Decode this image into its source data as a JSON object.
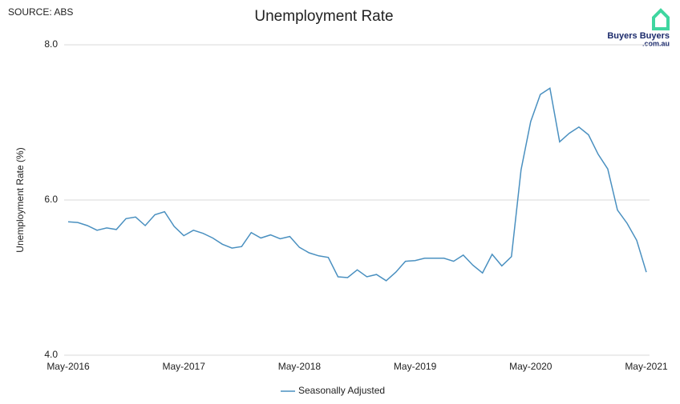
{
  "chart_data": {
    "type": "line",
    "source": "SOURCE: ABS",
    "title": "Unemployment Rate",
    "logo": {
      "name": "Buyers Buyers",
      "domain": ".com.au"
    },
    "y_label": "Unemployment Rate (%)",
    "categories": [
      "May-2016",
      null,
      null,
      null,
      null,
      null,
      null,
      null,
      null,
      null,
      null,
      null,
      "May-2017",
      null,
      null,
      null,
      null,
      null,
      null,
      null,
      null,
      null,
      null,
      null,
      "May-2018",
      null,
      null,
      null,
      null,
      null,
      null,
      null,
      null,
      null,
      null,
      null,
      "May-2019",
      null,
      null,
      null,
      null,
      null,
      null,
      null,
      null,
      null,
      null,
      null,
      "May-2020",
      null,
      null,
      null,
      null,
      null,
      null,
      null,
      null,
      null,
      null,
      null,
      "May-2021"
    ],
    "series": [
      {
        "name": "Seasonally Adjusted",
        "color": "#4a90c0",
        "values": [
          5.72,
          5.71,
          5.67,
          5.61,
          5.64,
          5.62,
          5.76,
          5.78,
          5.67,
          5.81,
          5.85,
          5.66,
          5.54,
          5.61,
          5.57,
          5.51,
          5.43,
          5.38,
          5.4,
          5.58,
          5.51,
          5.55,
          5.5,
          5.53,
          5.39,
          5.32,
          5.28,
          5.26,
          5.01,
          5.0,
          5.1,
          5.01,
          5.04,
          4.96,
          5.07,
          5.21,
          5.22,
          5.25,
          5.25,
          5.25,
          5.21,
          5.29,
          5.16,
          5.06,
          5.3,
          5.15,
          5.27,
          6.39,
          7.01,
          7.36,
          7.44,
          6.75,
          6.86,
          6.94,
          6.84,
          6.59,
          6.4,
          5.87,
          5.7,
          5.48,
          5.07
        ]
      }
    ],
    "ylim": [
      4,
      8
    ],
    "yticks": [
      {
        "value": 4,
        "label": "4.0"
      },
      {
        "value": 6,
        "label": "6.0"
      },
      {
        "value": 8,
        "label": "8.0"
      }
    ],
    "grid": true,
    "legend": "bottom"
  }
}
